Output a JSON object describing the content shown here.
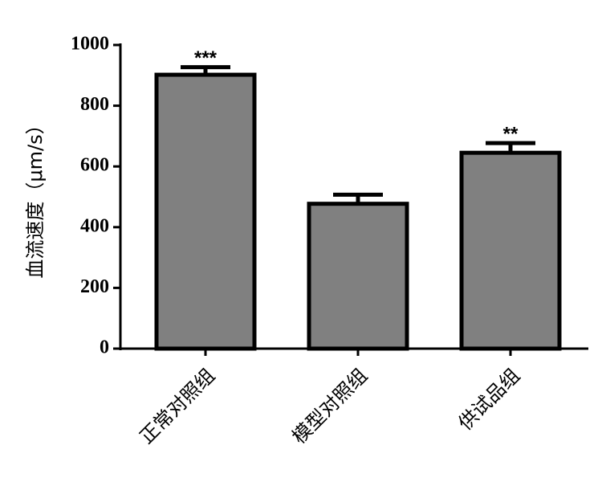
{
  "chart_data": {
    "type": "bar",
    "y_label": "血流速度（μm/s）",
    "categories": [
      "正常对照组",
      "模型对照组",
      "供试品组"
    ],
    "values": [
      902,
      477,
      645
    ],
    "errors": [
      25,
      30,
      32
    ],
    "annotations": [
      "***",
      null,
      "**"
    ],
    "color": "#808080",
    "ylim": [
      0,
      1000
    ],
    "yticks": [
      0,
      200,
      400,
      600,
      800,
      1000
    ]
  }
}
